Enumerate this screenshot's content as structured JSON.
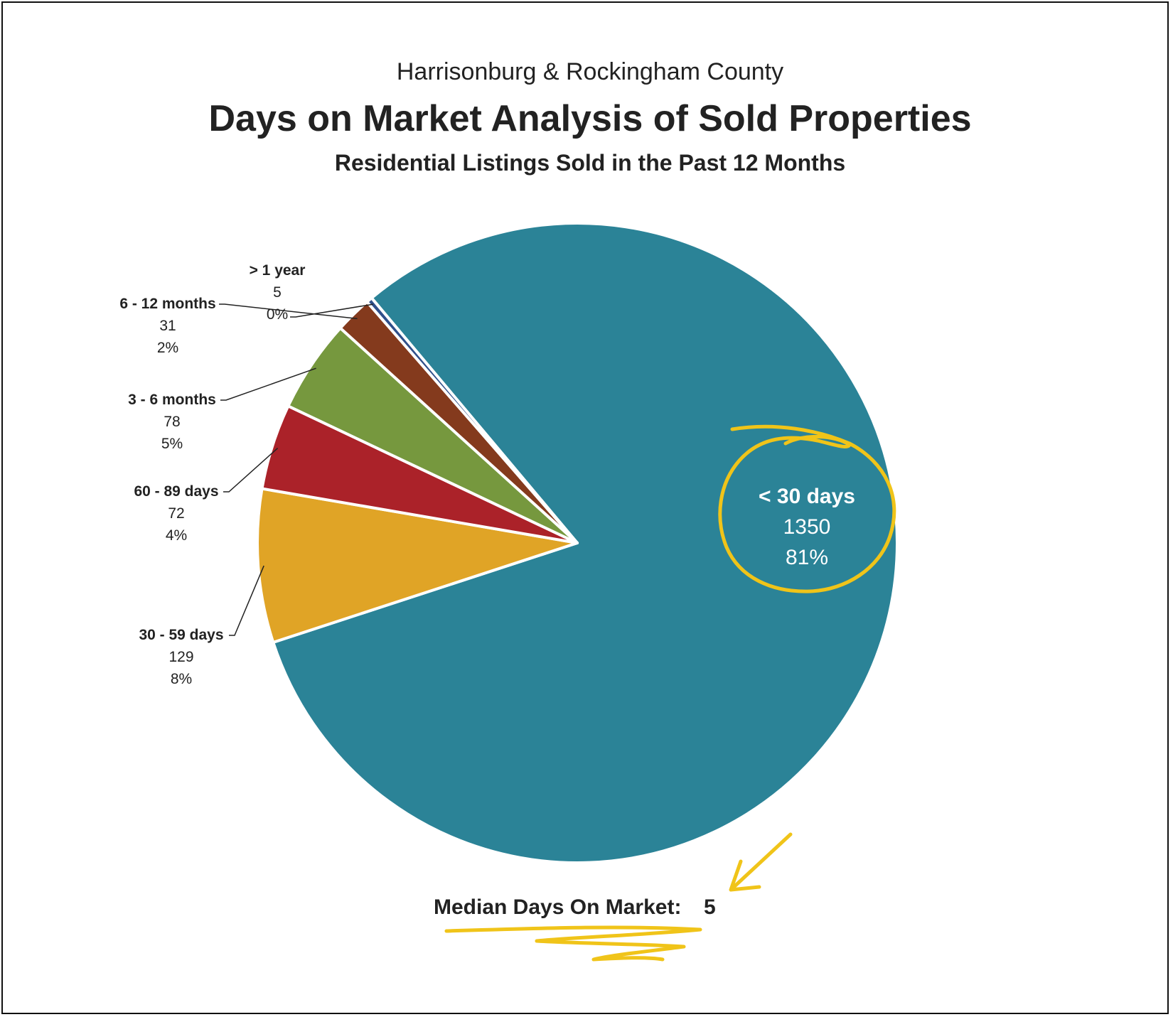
{
  "chart_data": {
    "type": "pie",
    "region": "Harrisonburg & Rockingham County",
    "title": "Days on Market Analysis of Sold Properties",
    "subtitle": "Residential Listings Sold in the Past 12 Months",
    "slices": [
      {
        "label": "< 30 days",
        "value": 1350,
        "percent": "81%",
        "color": "#2B8397"
      },
      {
        "label": "30 - 59 days",
        "value": 129,
        "percent": "8%",
        "color": "#E0A426"
      },
      {
        "label": "60 - 89 days",
        "value": 72,
        "percent": "4%",
        "color": "#AB2229"
      },
      {
        "label": "3 - 6 months",
        "value": 78,
        "percent": "5%",
        "color": "#76983E"
      },
      {
        "label": "6 - 12 months",
        "value": 31,
        "percent": "2%",
        "color": "#843A1D"
      },
      {
        "label": "> 1 year",
        "value": 5,
        "percent": "0%",
        "color": "#2F4F8A"
      }
    ],
    "median_label": "Median Days On Market:",
    "median_value": "5",
    "annotation_color": "#F0C419"
  }
}
